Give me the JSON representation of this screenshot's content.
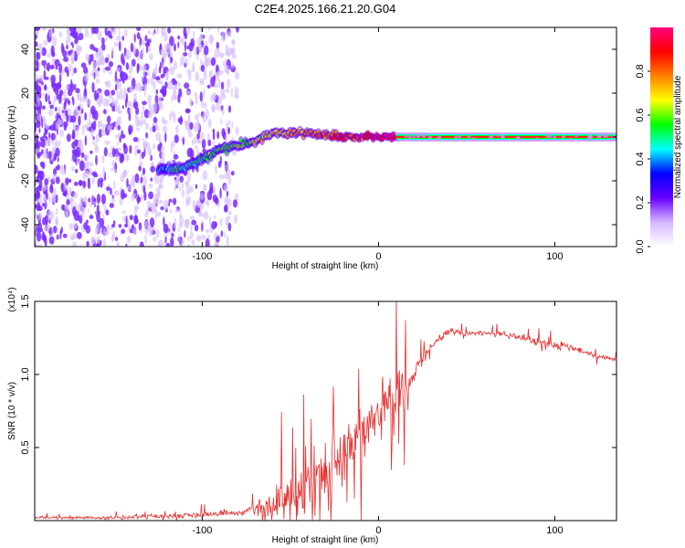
{
  "title": "C2E4.2025.166.21.20.G04",
  "chart_data": [
    {
      "type": "heatmap",
      "xlabel": "Height of straight line (km)",
      "ylabel": "Frequency (Hz)",
      "xlim": [
        -195,
        135
      ],
      "ylim": [
        -50,
        50
      ],
      "xticks": [
        -100,
        0,
        100
      ],
      "yticks": [
        -40,
        -20,
        0,
        20,
        40
      ],
      "ridge": {
        "x": [
          -125,
          -110,
          -100,
          -90,
          -80,
          -70,
          -60,
          -50,
          -40,
          -30,
          -20,
          -10,
          0,
          10,
          135
        ],
        "y": [
          -15,
          -14,
          -10,
          -6,
          -4,
          -2,
          2,
          2,
          2,
          1,
          0,
          0,
          0,
          0,
          0
        ],
        "steady_from": 10,
        "steady_value": 0
      },
      "noise_extent": [
        -195,
        -80
      ],
      "colorbar": {
        "label": "Normalized spectral amplitude",
        "ticks": [
          "0.0",
          "0.2",
          "0.4",
          "0.6",
          "0.8"
        ],
        "range": [
          0,
          1
        ],
        "colormap": [
          "#ffffff",
          "#d6b8ff",
          "#6600ff",
          "#0000ff",
          "#00ffff",
          "#00ff00",
          "#ffff00",
          "#ff8000",
          "#ff0000",
          "#ff0080"
        ]
      }
    },
    {
      "type": "line",
      "xlabel": "Height of straight line (km)",
      "ylabel": "SNR (10 * v/v)",
      "scale_label": "(x10⁴)",
      "xlim": [
        -195,
        135
      ],
      "ylim": [
        0,
        15000
      ],
      "xticks": [
        -100,
        0,
        100
      ],
      "yticks": [
        "0.5",
        "1.0",
        "1.5"
      ],
      "ytick_values": [
        5000,
        10000,
        15000
      ],
      "color": "#e53030",
      "series": [
        {
          "envelope": {
            "x": [
              -195,
              -150,
              -100,
              -80,
              -70,
              -60,
              -50,
              -40,
              -30,
              -20,
              -10,
              0,
              5,
              10,
              20,
              30,
              40,
              50,
              70,
              100,
              110,
              120,
              135
            ],
            "base": [
              200,
              200,
              400,
              500,
              800,
              1200,
              1500,
              2000,
              3000,
              4500,
              6000,
              7500,
              7800,
              8000,
              10000,
              12000,
              13000,
              12800,
              12800,
              12000,
              11800,
              11400,
              11000
            ],
            "spike": [
              200,
              250,
              500,
              500,
              1000,
              3000,
              5000,
              6000,
              6000,
              6500,
              5000,
              5500,
              4000,
              7000,
              2000,
              600,
              600,
              500,
              500,
              700,
              500,
              400,
              400
            ]
          }
        }
      ]
    }
  ]
}
